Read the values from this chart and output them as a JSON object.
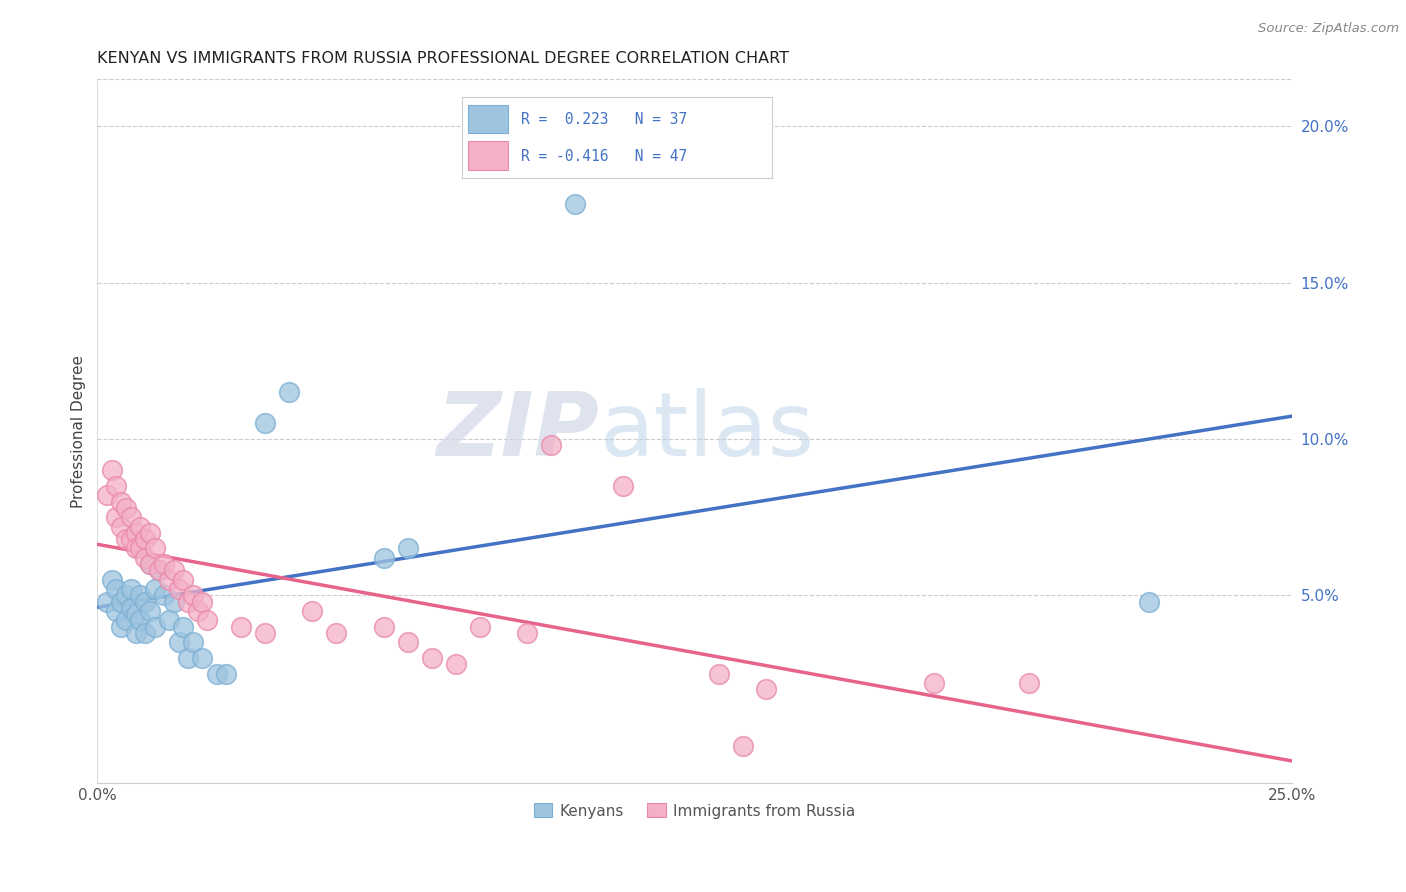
{
  "title": "KENYAN VS IMMIGRANTS FROM RUSSIA PROFESSIONAL DEGREE CORRELATION CHART",
  "source": "Source: ZipAtlas.com",
  "ylabel": "Professional Degree",
  "xlim": [
    0.0,
    0.25
  ],
  "ylim": [
    -0.01,
    0.215
  ],
  "right_yticks": [
    0.05,
    0.1,
    0.15,
    0.2
  ],
  "right_yticklabels": [
    "5.0%",
    "10.0%",
    "15.0%",
    "20.0%"
  ],
  "bottom_xticks": [
    0.0,
    0.05,
    0.1,
    0.15,
    0.2,
    0.25
  ],
  "bottom_xticklabels": [
    "0.0%",
    "",
    "",
    "",
    "",
    "25.0%"
  ],
  "legend_R1": "R =  0.223",
  "legend_N1": "N = 37",
  "legend_R2": "R = -0.416",
  "legend_N2": "N = 47",
  "kenyan_color": "#9ec4e0",
  "kenyan_edge": "#7bafd4",
  "russia_color": "#f4b0c8",
  "russia_edge": "#e888a8",
  "kenyan_line_color": "#4472c4",
  "russia_line_color": "#e8638a",
  "watermark_zip": "ZIP",
  "watermark_atlas": "atlas",
  "kenyan_scatter": [
    [
      0.002,
      0.048
    ],
    [
      0.003,
      0.055
    ],
    [
      0.004,
      0.052
    ],
    [
      0.004,
      0.045
    ],
    [
      0.005,
      0.048
    ],
    [
      0.005,
      0.04
    ],
    [
      0.006,
      0.05
    ],
    [
      0.006,
      0.042
    ],
    [
      0.007,
      0.046
    ],
    [
      0.007,
      0.052
    ],
    [
      0.008,
      0.044
    ],
    [
      0.008,
      0.038
    ],
    [
      0.009,
      0.05
    ],
    [
      0.009,
      0.042
    ],
    [
      0.01,
      0.048
    ],
    [
      0.01,
      0.038
    ],
    [
      0.011,
      0.06
    ],
    [
      0.011,
      0.045
    ],
    [
      0.012,
      0.052
    ],
    [
      0.012,
      0.04
    ],
    [
      0.013,
      0.058
    ],
    [
      0.014,
      0.05
    ],
    [
      0.015,
      0.042
    ],
    [
      0.016,
      0.048
    ],
    [
      0.017,
      0.035
    ],
    [
      0.018,
      0.04
    ],
    [
      0.019,
      0.03
    ],
    [
      0.02,
      0.035
    ],
    [
      0.022,
      0.03
    ],
    [
      0.025,
      0.025
    ],
    [
      0.027,
      0.025
    ],
    [
      0.035,
      0.105
    ],
    [
      0.04,
      0.115
    ],
    [
      0.06,
      0.062
    ],
    [
      0.065,
      0.065
    ],
    [
      0.1,
      0.175
    ],
    [
      0.22,
      0.048
    ]
  ],
  "russia_scatter": [
    [
      0.002,
      0.082
    ],
    [
      0.003,
      0.09
    ],
    [
      0.004,
      0.085
    ],
    [
      0.004,
      0.075
    ],
    [
      0.005,
      0.08
    ],
    [
      0.005,
      0.072
    ],
    [
      0.006,
      0.078
    ],
    [
      0.006,
      0.068
    ],
    [
      0.007,
      0.075
    ],
    [
      0.007,
      0.068
    ],
    [
      0.008,
      0.07
    ],
    [
      0.008,
      0.065
    ],
    [
      0.009,
      0.072
    ],
    [
      0.009,
      0.065
    ],
    [
      0.01,
      0.068
    ],
    [
      0.01,
      0.062
    ],
    [
      0.011,
      0.07
    ],
    [
      0.011,
      0.06
    ],
    [
      0.012,
      0.065
    ],
    [
      0.013,
      0.058
    ],
    [
      0.014,
      0.06
    ],
    [
      0.015,
      0.055
    ],
    [
      0.016,
      0.058
    ],
    [
      0.017,
      0.052
    ],
    [
      0.018,
      0.055
    ],
    [
      0.019,
      0.048
    ],
    [
      0.02,
      0.05
    ],
    [
      0.021,
      0.045
    ],
    [
      0.022,
      0.048
    ],
    [
      0.023,
      0.042
    ],
    [
      0.03,
      0.04
    ],
    [
      0.035,
      0.038
    ],
    [
      0.045,
      0.045
    ],
    [
      0.05,
      0.038
    ],
    [
      0.06,
      0.04
    ],
    [
      0.065,
      0.035
    ],
    [
      0.07,
      0.03
    ],
    [
      0.075,
      0.028
    ],
    [
      0.08,
      0.04
    ],
    [
      0.09,
      0.038
    ],
    [
      0.095,
      0.098
    ],
    [
      0.11,
      0.085
    ],
    [
      0.13,
      0.025
    ],
    [
      0.14,
      0.02
    ],
    [
      0.175,
      0.022
    ],
    [
      0.195,
      0.022
    ],
    [
      0.135,
      0.002
    ]
  ]
}
